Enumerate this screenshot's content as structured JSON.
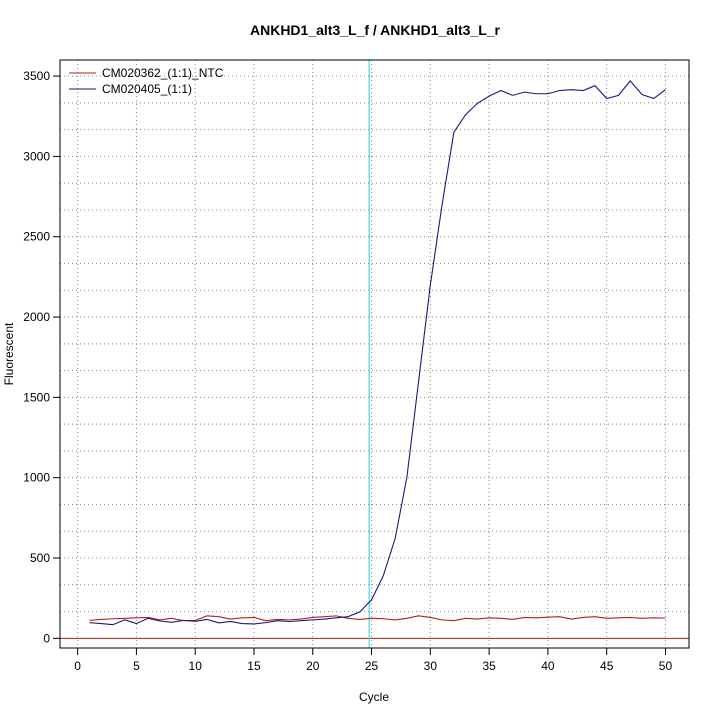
{
  "chart_data": {
    "type": "line",
    "title": "ANKHD1_alt3_L_f / ANKHD1_alt3_L_r",
    "xlabel": "Cycle",
    "ylabel": "Fluorescent",
    "xlim": [
      -1.5,
      52
    ],
    "ylim": [
      -60,
      3600
    ],
    "x_ticks": [
      0,
      5,
      10,
      15,
      20,
      25,
      30,
      35,
      40,
      45,
      50
    ],
    "y_ticks": [
      0,
      500,
      1000,
      1500,
      2000,
      2500,
      3000,
      3500
    ],
    "x_grid": [
      0,
      5,
      10,
      15,
      20,
      25,
      30,
      35,
      40,
      45,
      50
    ],
    "y_grid": [
      0,
      166.67,
      333.33,
      500,
      666.67,
      833.33,
      1000,
      1166.67,
      1333.33,
      1500,
      1666.67,
      1833.33,
      2000,
      2166.67,
      2333.33,
      2500,
      2666.67,
      2833.33,
      3000,
      3166.67,
      3333.33,
      3500
    ],
    "grid": true,
    "legend_position": "top-left",
    "threshold": {
      "x": 24.8,
      "color": "#40d8e8"
    },
    "baseline": {
      "y": 0,
      "color": "#aa2222"
    },
    "x": [
      1,
      2,
      3,
      4,
      5,
      6,
      7,
      8,
      9,
      10,
      11,
      12,
      13,
      14,
      15,
      16,
      17,
      18,
      19,
      20,
      21,
      22,
      23,
      24,
      25,
      26,
      27,
      28,
      29,
      30,
      31,
      32,
      33,
      34,
      35,
      36,
      37,
      38,
      39,
      40,
      41,
      42,
      43,
      44,
      45,
      46,
      47,
      48,
      49,
      50
    ],
    "series": [
      {
        "name": "CM020362_(1:1)_NTC",
        "color": "#aa2222",
        "values": [
          112,
          118,
          122,
          125,
          128,
          130,
          115,
          125,
          110,
          112,
          140,
          135,
          120,
          128,
          130,
          110,
          118,
          115,
          120,
          130,
          135,
          140,
          125,
          118,
          125,
          122,
          115,
          125,
          140,
          130,
          115,
          110,
          125,
          120,
          128,
          125,
          118,
          130,
          128,
          132,
          135,
          120,
          130,
          135,
          125,
          128,
          130,
          125,
          128,
          126
        ]
      },
      {
        "name": "CM020405_(1:1)",
        "color": "#1a1a7a",
        "values": [
          98,
          92,
          85,
          115,
          92,
          125,
          108,
          100,
          112,
          106,
          118,
          96,
          105,
          92,
          90,
          98,
          110,
          105,
          110,
          115,
          120,
          128,
          135,
          165,
          240,
          390,
          620,
          1000,
          1600,
          2200,
          2700,
          3150,
          3260,
          3330,
          3375,
          3410,
          3380,
          3400,
          3390,
          3390,
          3410,
          3415,
          3410,
          3440,
          3360,
          3380,
          3470,
          3385,
          3360,
          3415
        ]
      }
    ]
  }
}
